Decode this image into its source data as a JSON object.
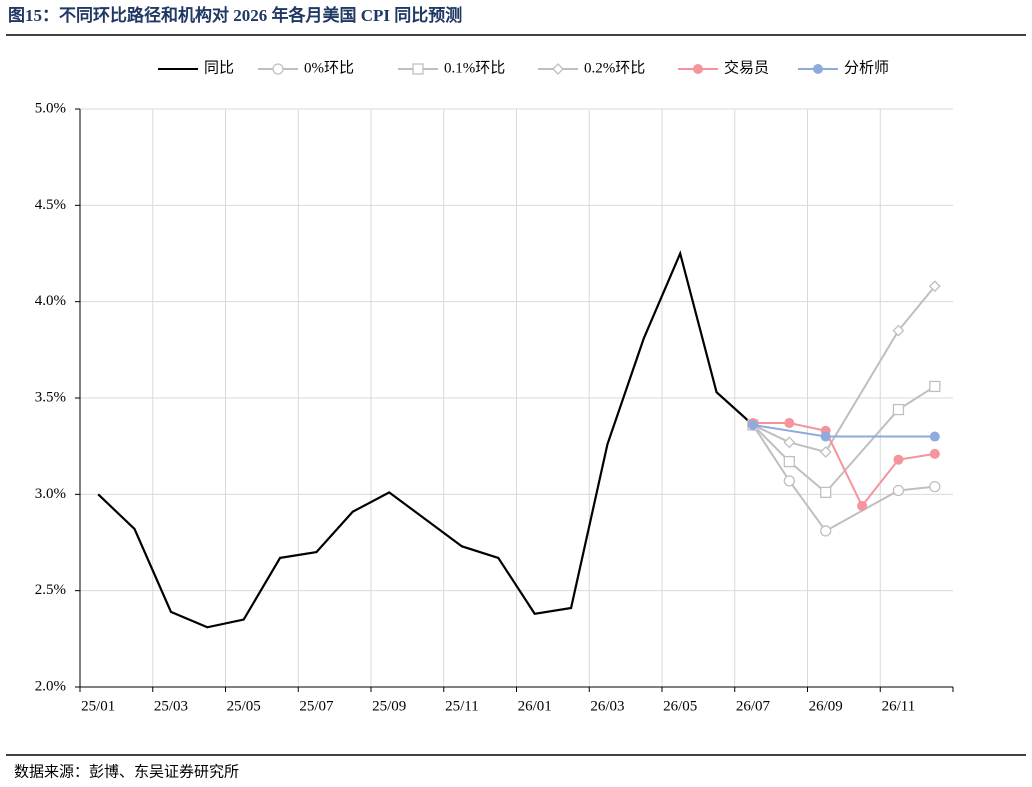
{
  "chart_data": {
    "type": "line",
    "title": "图15：不同环比路径和机构对 2026 年各月美国 CPI 同比预测",
    "source": "数据来源：彭博、东吴证券研究所",
    "categories": [
      "25/01",
      null,
      "25/03",
      null,
      "25/05",
      null,
      "25/07",
      null,
      "25/09",
      null,
      "25/11",
      null,
      "26/01",
      null,
      "26/03",
      null,
      "26/05",
      null,
      "26/07",
      null,
      "26/09",
      null,
      "26/11",
      null
    ],
    "ylim": [
      2.0,
      5.0
    ],
    "yticks": [
      {
        "value": 2.0,
        "label": "2.0%"
      },
      {
        "value": 2.5,
        "label": "2.5%"
      },
      {
        "value": 3.0,
        "label": "3.0%"
      },
      {
        "value": 3.5,
        "label": "3.5%"
      },
      {
        "value": 4.0,
        "label": "4.0%"
      },
      {
        "value": 4.5,
        "label": "4.5%"
      },
      {
        "value": 5.0,
        "label": "5.0%"
      }
    ],
    "grid": true,
    "connect_gaps": true,
    "legend": "top",
    "series": [
      {
        "name": "同比",
        "color": "#000000",
        "marker": "none",
        "values": [
          3.0,
          2.82,
          2.39,
          2.31,
          2.35,
          2.67,
          2.7,
          2.91,
          3.01,
          2.87,
          2.73,
          2.67,
          2.38,
          2.41,
          3.26,
          3.81,
          4.25,
          3.53,
          3.36,
          null,
          null,
          null,
          null,
          null
        ]
      },
      {
        "name": "0%环比",
        "color": "#bfbfbf",
        "marker": "circle",
        "values": [
          null,
          null,
          null,
          null,
          null,
          null,
          null,
          null,
          null,
          null,
          null,
          null,
          null,
          null,
          null,
          null,
          null,
          null,
          3.36,
          3.07,
          2.81,
          null,
          3.02,
          3.04
        ]
      },
      {
        "name": "0.1%环比",
        "color": "#bfbfbf",
        "marker": "square",
        "values": [
          null,
          null,
          null,
          null,
          null,
          null,
          null,
          null,
          null,
          null,
          null,
          null,
          null,
          null,
          null,
          null,
          null,
          null,
          3.36,
          3.17,
          3.01,
          null,
          3.44,
          3.56
        ]
      },
      {
        "name": "0.2%环比",
        "color": "#bfbfbf",
        "marker": "diamond",
        "values": [
          null,
          null,
          null,
          null,
          null,
          null,
          null,
          null,
          null,
          null,
          null,
          null,
          null,
          null,
          null,
          null,
          null,
          null,
          3.36,
          3.27,
          3.22,
          null,
          3.85,
          4.08
        ]
      },
      {
        "name": "交易员",
        "color": "#f4949c",
        "marker": "dot",
        "values": [
          null,
          null,
          null,
          null,
          null,
          null,
          null,
          null,
          null,
          null,
          null,
          null,
          null,
          null,
          null,
          null,
          null,
          null,
          3.37,
          3.37,
          3.33,
          2.94,
          3.18,
          3.21
        ]
      },
      {
        "name": "分析师",
        "color": "#8faadc",
        "marker": "dot",
        "values": [
          null,
          null,
          null,
          null,
          null,
          null,
          null,
          null,
          null,
          null,
          null,
          null,
          null,
          null,
          null,
          null,
          null,
          null,
          3.36,
          null,
          3.3,
          null,
          null,
          3.3
        ]
      }
    ]
  }
}
